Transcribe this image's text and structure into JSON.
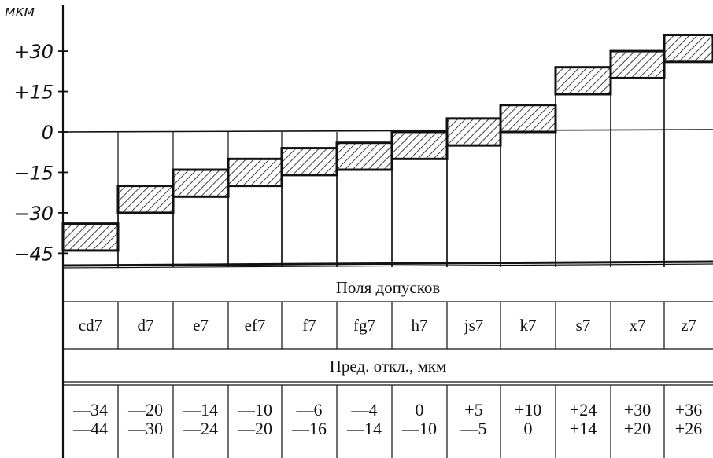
{
  "y_axis": {
    "unit": "мкм",
    "ticks": [
      "+30",
      "+15",
      "0",
      "−15",
      "−30",
      "−45"
    ],
    "tick_values": [
      30,
      15,
      0,
      -15,
      -30,
      -45
    ],
    "range": [
      -48,
      38
    ]
  },
  "table": {
    "fields_caption": "Поля допусков",
    "deviations_caption": "Пред. откл., мкм"
  },
  "chart_data": {
    "type": "tolerance_fields",
    "ylabel": "мкм",
    "ylim": [
      -48,
      38
    ],
    "fields": [
      {
        "name": "cd7",
        "upper": -34,
        "lower": -44,
        "upper_label": "—34",
        "lower_label": "—44"
      },
      {
        "name": "d7",
        "upper": -20,
        "lower": -30,
        "upper_label": "—20",
        "lower_label": "—30"
      },
      {
        "name": "e7",
        "upper": -14,
        "lower": -24,
        "upper_label": "—14",
        "lower_label": "—24"
      },
      {
        "name": "ef7",
        "upper": -10,
        "lower": -20,
        "upper_label": "—10",
        "lower_label": "—20"
      },
      {
        "name": "f7",
        "upper": -6,
        "lower": -16,
        "upper_label": "—6",
        "lower_label": "—16"
      },
      {
        "name": "fg7",
        "upper": -4,
        "lower": -14,
        "upper_label": "—4",
        "lower_label": "—14"
      },
      {
        "name": "h7",
        "upper": 0,
        "lower": -10,
        "upper_label": "0",
        "lower_label": "—10"
      },
      {
        "name": "js7",
        "upper": 5,
        "lower": -5,
        "upper_label": "+5",
        "lower_label": "—5"
      },
      {
        "name": "k7",
        "upper": 10,
        "lower": 0,
        "upper_label": "+10",
        "lower_label": "0"
      },
      {
        "name": "s7",
        "upper": 24,
        "lower": 14,
        "upper_label": "+24",
        "lower_label": "+14"
      },
      {
        "name": "x7",
        "upper": 30,
        "lower": 20,
        "upper_label": "+30",
        "lower_label": "+20"
      },
      {
        "name": "z7",
        "upper": 36,
        "lower": 26,
        "upper_label": "+36",
        "lower_label": "+26"
      }
    ]
  },
  "colors": {
    "ink": "#111111",
    "paper": "#ffffff"
  }
}
